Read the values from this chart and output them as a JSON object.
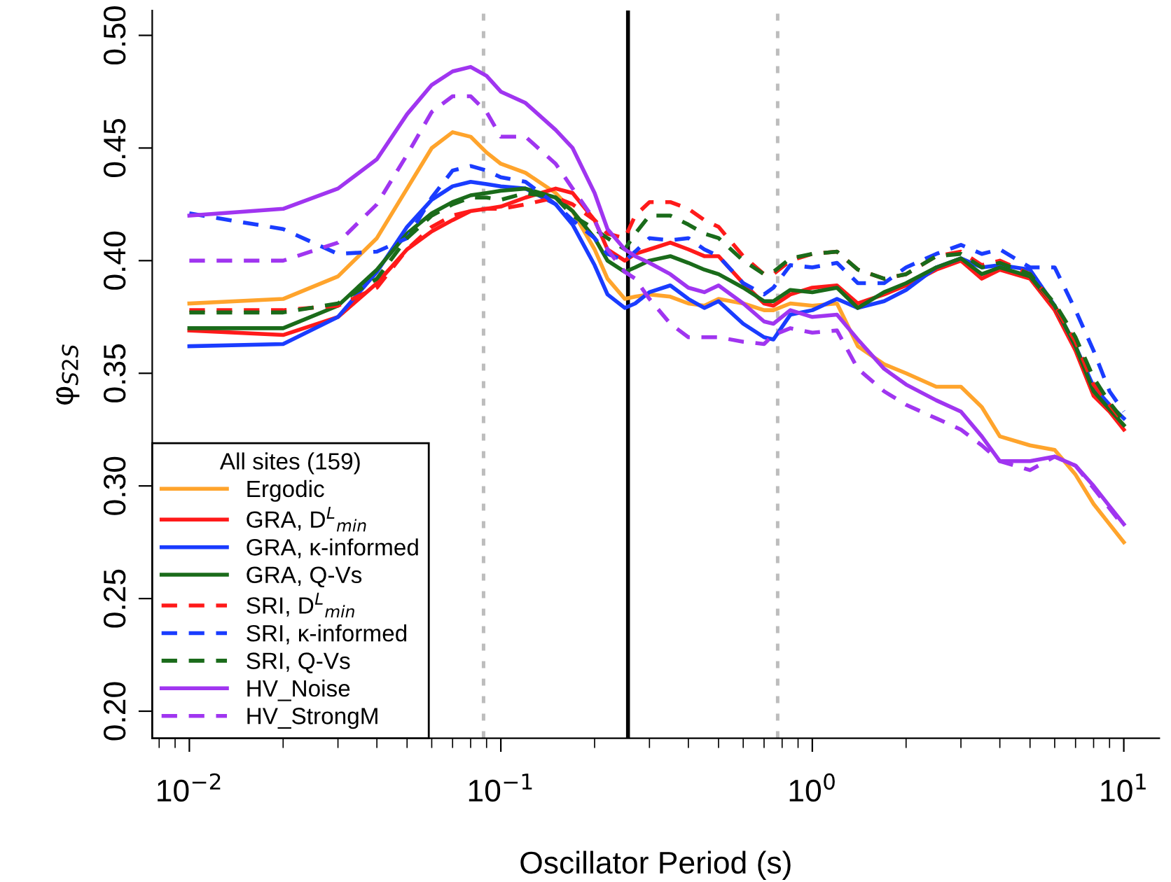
{
  "chart_data": {
    "type": "line",
    "xlabel": "Oscillator Period (s)",
    "ylabel": "φ$_{S2S}$",
    "legend_title": "All sites (159)",
    "legend": "bottom left",
    "log": "x",
    "grid": false,
    "x": [
      0.01,
      0.02,
      0.03,
      0.04,
      0.05,
      0.06,
      0.07,
      0.08,
      0.09,
      0.1,
      0.12,
      0.15,
      0.17,
      0.2,
      0.22,
      0.25,
      0.27,
      0.3,
      0.35,
      0.4,
      0.45,
      0.5,
      0.6,
      0.7,
      0.75,
      0.85,
      1.0,
      1.2,
      1.4,
      1.7,
      2.0,
      2.5,
      3.0,
      3.5,
      4.0,
      5.0,
      6.0,
      7.0,
      8.0,
      9.0,
      10.0
    ],
    "xlim": [
      0.0076,
      13
    ],
    "xticks": [
      {
        "value": 0.01,
        "label": "10$^{−2}$"
      },
      {
        "value": 0.1,
        "label": "10$^{−1}$"
      },
      {
        "value": 1,
        "label": "10$^{0}$"
      },
      {
        "value": 10,
        "label": "10$^{1}$"
      }
    ],
    "ylim": [
      0.188,
      0.511
    ],
    "yticks": [
      {
        "value": 0.2,
        "label": "0.20"
      },
      {
        "value": 0.25,
        "label": "0.25"
      },
      {
        "value": 0.3,
        "label": "0.30"
      },
      {
        "value": 0.35,
        "label": "0.35"
      },
      {
        "value": 0.4,
        "label": "0.40"
      },
      {
        "value": 0.45,
        "label": "0.45"
      },
      {
        "value": 0.5,
        "label": "0.50"
      }
    ],
    "ref_lines": [
      {
        "axis": "x",
        "value": 0.088,
        "color": "#bdbdbd",
        "line_style": "dotted"
      },
      {
        "axis": "x",
        "value": 0.256,
        "color": "#000000",
        "line_style": "solid"
      },
      {
        "axis": "x",
        "value": 0.774,
        "color": "#bdbdbd",
        "line_style": "dotted"
      }
    ],
    "series": [
      {
        "name": "Ergodic",
        "color": "#ffa42c",
        "line_style": "solid",
        "values": [
          0.381,
          0.383,
          0.393,
          0.41,
          0.432,
          0.45,
          0.457,
          0.455,
          0.448,
          0.443,
          0.439,
          0.43,
          0.422,
          0.405,
          0.392,
          0.383,
          0.384,
          0.385,
          0.384,
          0.381,
          0.38,
          0.383,
          0.381,
          0.378,
          0.378,
          0.381,
          0.38,
          0.381,
          0.362,
          0.354,
          0.35,
          0.344,
          0.344,
          0.335,
          0.322,
          0.318,
          0.316,
          0.305,
          0.292,
          0.283,
          0.275
        ]
      },
      {
        "name": "GRA, D$^{L}$$_{min}$",
        "color": "#ff1a1a",
        "line_style": "solid",
        "values": [
          0.369,
          0.367,
          0.375,
          0.39,
          0.405,
          0.413,
          0.418,
          0.422,
          0.423,
          0.424,
          0.428,
          0.432,
          0.43,
          0.418,
          0.405,
          0.4,
          0.403,
          0.405,
          0.408,
          0.405,
          0.402,
          0.402,
          0.39,
          0.381,
          0.38,
          0.385,
          0.388,
          0.389,
          0.381,
          0.385,
          0.389,
          0.396,
          0.4,
          0.392,
          0.396,
          0.392,
          0.378,
          0.36,
          0.34,
          0.333,
          0.325
        ]
      },
      {
        "name": "GRA, κ-informed",
        "color": "#1a3cff",
        "line_style": "solid",
        "values": [
          0.362,
          0.363,
          0.375,
          0.395,
          0.415,
          0.427,
          0.433,
          0.435,
          0.434,
          0.433,
          0.432,
          0.425,
          0.416,
          0.398,
          0.385,
          0.379,
          0.381,
          0.386,
          0.389,
          0.383,
          0.379,
          0.382,
          0.372,
          0.366,
          0.365,
          0.376,
          0.378,
          0.383,
          0.379,
          0.382,
          0.387,
          0.397,
          0.401,
          0.397,
          0.398,
          0.396,
          0.38,
          0.362,
          0.344,
          0.336,
          0.33
        ]
      },
      {
        "name": "GRA, Q-Vs",
        "color": "#1a6b1a",
        "line_style": "solid",
        "values": [
          0.37,
          0.37,
          0.38,
          0.396,
          0.412,
          0.421,
          0.426,
          0.429,
          0.43,
          0.431,
          0.432,
          0.428,
          0.422,
          0.41,
          0.4,
          0.395,
          0.397,
          0.4,
          0.402,
          0.399,
          0.396,
          0.394,
          0.388,
          0.382,
          0.382,
          0.387,
          0.386,
          0.388,
          0.379,
          0.386,
          0.39,
          0.397,
          0.401,
          0.394,
          0.397,
          0.393,
          0.38,
          0.362,
          0.342,
          0.334,
          0.327
        ]
      },
      {
        "name": "SRI, D$^{L}$$_{min}$",
        "color": "#ff1a1a",
        "line_style": "dashed",
        "values": [
          0.378,
          0.378,
          0.38,
          0.388,
          0.405,
          0.415,
          0.42,
          0.422,
          0.423,
          0.423,
          0.425,
          0.428,
          0.425,
          0.418,
          0.412,
          0.41,
          0.42,
          0.426,
          0.426,
          0.423,
          0.418,
          0.415,
          0.402,
          0.394,
          0.394,
          0.4,
          0.403,
          0.404,
          0.396,
          0.392,
          0.394,
          0.402,
          0.404,
          0.398,
          0.4,
          0.394,
          0.38,
          0.364,
          0.345,
          0.336,
          0.328
        ]
      },
      {
        "name": "SRI, κ-informed",
        "color": "#1a3cff",
        "line_style": "dashed",
        "values": [
          0.421,
          0.414,
          0.403,
          0.404,
          0.41,
          0.428,
          0.44,
          0.442,
          0.44,
          0.437,
          0.435,
          0.425,
          0.418,
          0.41,
          0.403,
          0.4,
          0.404,
          0.41,
          0.409,
          0.41,
          0.405,
          0.402,
          0.39,
          0.385,
          0.388,
          0.398,
          0.397,
          0.399,
          0.39,
          0.39,
          0.397,
          0.403,
          0.407,
          0.403,
          0.405,
          0.397,
          0.397,
          0.378,
          0.36,
          0.342,
          0.333
        ]
      },
      {
        "name": "SRI, Q-Vs",
        "color": "#1a6b1a",
        "line_style": "dashed",
        "values": [
          0.377,
          0.377,
          0.381,
          0.392,
          0.41,
          0.42,
          0.425,
          0.428,
          0.428,
          0.427,
          0.43,
          0.428,
          0.42,
          0.414,
          0.41,
          0.405,
          0.412,
          0.42,
          0.42,
          0.416,
          0.412,
          0.41,
          0.4,
          0.394,
          0.395,
          0.401,
          0.403,
          0.404,
          0.396,
          0.392,
          0.394,
          0.402,
          0.403,
          0.397,
          0.399,
          0.394,
          0.381,
          0.366,
          0.348,
          0.337,
          0.329
        ]
      },
      {
        "name": "HV_Noise",
        "color": "#a035f0",
        "line_style": "solid",
        "values": [
          0.42,
          0.423,
          0.432,
          0.445,
          0.465,
          0.478,
          0.484,
          0.486,
          0.482,
          0.475,
          0.47,
          0.458,
          0.45,
          0.43,
          0.414,
          0.405,
          0.402,
          0.399,
          0.394,
          0.388,
          0.386,
          0.389,
          0.381,
          0.373,
          0.372,
          0.378,
          0.375,
          0.376,
          0.365,
          0.352,
          0.345,
          0.338,
          0.333,
          0.322,
          0.311,
          0.311,
          0.313,
          0.309,
          0.3,
          0.291,
          0.283
        ]
      },
      {
        "name": "HV_StrongM",
        "color": "#a035f0",
        "line_style": "dashed",
        "values": [
          0.4,
          0.4,
          0.408,
          0.425,
          0.447,
          0.466,
          0.473,
          0.473,
          0.466,
          0.455,
          0.455,
          0.443,
          0.432,
          0.418,
          0.405,
          0.395,
          0.392,
          0.383,
          0.372,
          0.366,
          0.366,
          0.366,
          0.364,
          0.363,
          0.367,
          0.37,
          0.368,
          0.369,
          0.352,
          0.342,
          0.336,
          0.33,
          0.325,
          0.318,
          0.311,
          0.307,
          0.313,
          0.309,
          0.299,
          0.29,
          0.282
        ]
      }
    ]
  }
}
